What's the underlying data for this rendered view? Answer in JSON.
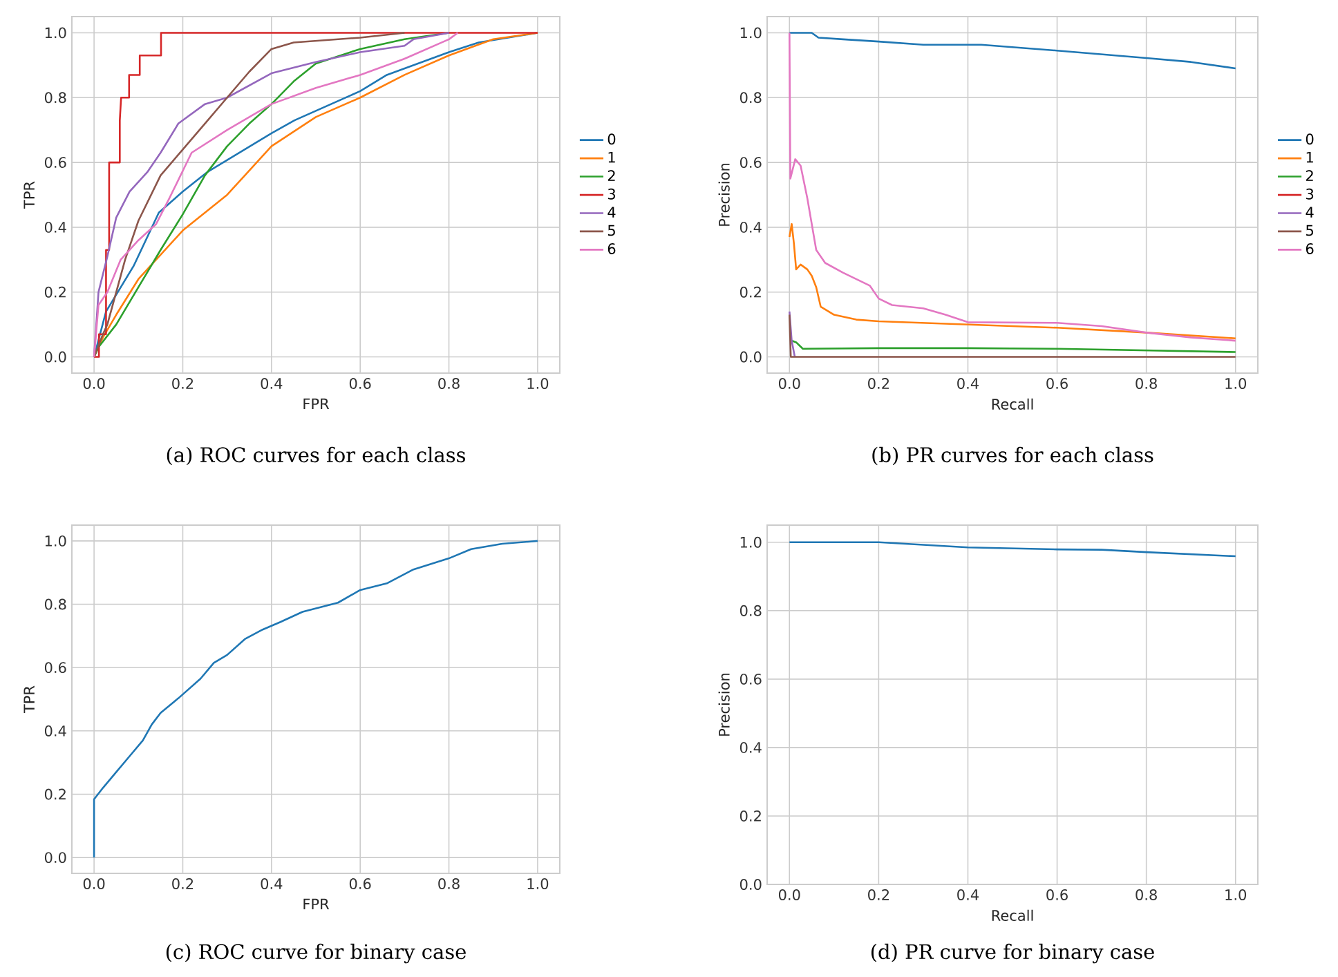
{
  "chart_data": [
    {
      "type": "line",
      "xlabel": "FPR",
      "ylabel": "TPR",
      "annotations": [
        "(a) ROC curves for each class"
      ],
      "xlim": [
        -0.05,
        1.05
      ],
      "ylim": [
        -0.05,
        1.05
      ],
      "xticks": [
        {
          "value": 0,
          "label": "0.0"
        },
        {
          "value": 0.2,
          "label": "0.2"
        },
        {
          "value": 0.4,
          "label": "0.4"
        },
        {
          "value": 0.6,
          "label": "0.6"
        },
        {
          "value": 0.8,
          "label": "0.8"
        },
        {
          "value": 1,
          "label": "1.0"
        }
      ],
      "yticks": [
        {
          "value": 0,
          "label": "0.0"
        },
        {
          "value": 0.2,
          "label": "0.2"
        },
        {
          "value": 0.4,
          "label": "0.4"
        },
        {
          "value": 0.6,
          "label": "0.6"
        },
        {
          "value": 0.8,
          "label": "0.8"
        },
        {
          "value": 1,
          "label": "1.0"
        }
      ],
      "grid": true,
      "legend": "right",
      "series": [
        {
          "name": "0",
          "color": "#1f77b4",
          "x": [
            0,
            0.027,
            0.089,
            0.146,
            0.2,
            0.255,
            0.4,
            0.452,
            0.6,
            0.66,
            0.8,
            0.867,
            1
          ],
          "values": [
            0,
            0.14,
            0.28,
            0.445,
            0.51,
            0.57,
            0.69,
            0.73,
            0.82,
            0.87,
            0.94,
            0.97,
            1
          ]
        },
        {
          "name": "1",
          "color": "#ff7f0e",
          "x": [
            0,
            0.02,
            0.05,
            0.1,
            0.2,
            0.3,
            0.4,
            0.5,
            0.6,
            0.7,
            0.8,
            0.9,
            1
          ],
          "values": [
            0,
            0.06,
            0.13,
            0.24,
            0.39,
            0.5,
            0.65,
            0.74,
            0.8,
            0.87,
            0.93,
            0.98,
            1
          ]
        },
        {
          "name": "2",
          "color": "#2ca02c",
          "x": [
            0,
            0.01,
            0.05,
            0.1,
            0.15,
            0.2,
            0.25,
            0.3,
            0.35,
            0.4,
            0.45,
            0.5,
            0.6,
            0.7,
            0.8
          ],
          "values": [
            0,
            0.03,
            0.1,
            0.215,
            0.33,
            0.44,
            0.56,
            0.65,
            0.72,
            0.78,
            0.85,
            0.905,
            0.95,
            0.98,
            1
          ]
        },
        {
          "name": "3",
          "color": "#d62728",
          "x": [
            0,
            0.011,
            0.011,
            0.027,
            0.027,
            0.034,
            0.034,
            0.058,
            0.058,
            0.061,
            0.079,
            0.079,
            0.103,
            0.103,
            0.151,
            0.151,
            1
          ],
          "values": [
            0,
            0,
            0.07,
            0.07,
            0.33,
            0.33,
            0.6,
            0.6,
            0.73,
            0.8,
            0.8,
            0.87,
            0.87,
            0.93,
            0.93,
            1,
            1
          ]
        },
        {
          "name": "4",
          "color": "#9467bd",
          "x": [
            0,
            0.01,
            0.03,
            0.05,
            0.08,
            0.12,
            0.15,
            0.19,
            0.25,
            0.3,
            0.4,
            0.5,
            0.6,
            0.7,
            0.72,
            0.8
          ],
          "values": [
            0,
            0.2,
            0.31,
            0.43,
            0.51,
            0.57,
            0.63,
            0.72,
            0.78,
            0.8,
            0.875,
            0.91,
            0.94,
            0.96,
            0.98,
            1
          ]
        },
        {
          "name": "5",
          "color": "#8c564b",
          "x": [
            0,
            0.02,
            0.03,
            0.07,
            0.1,
            0.15,
            0.2,
            0.25,
            0.3,
            0.35,
            0.4,
            0.45,
            0.6,
            0.7
          ],
          "values": [
            0,
            0.07,
            0.1,
            0.3,
            0.42,
            0.56,
            0.64,
            0.72,
            0.8,
            0.88,
            0.95,
            0.97,
            0.985,
            1
          ]
        },
        {
          "name": "6",
          "color": "#e377c2",
          "x": [
            0,
            0.01,
            0.03,
            0.06,
            0.1,
            0.14,
            0.17,
            0.22,
            0.3,
            0.4,
            0.5,
            0.6,
            0.7,
            0.8,
            0.82
          ],
          "values": [
            0,
            0.16,
            0.2,
            0.3,
            0.36,
            0.41,
            0.49,
            0.63,
            0.7,
            0.78,
            0.83,
            0.87,
            0.92,
            0.98,
            1
          ]
        }
      ]
    },
    {
      "type": "line",
      "xlabel": "Recall",
      "ylabel": "Precision",
      "annotations": [
        "(b) PR curves for each class"
      ],
      "xlim": [
        -0.05,
        1.05
      ],
      "ylim": [
        -0.05,
        1.05
      ],
      "xticks": [
        {
          "value": 0,
          "label": "0.0"
        },
        {
          "value": 0.2,
          "label": "0.2"
        },
        {
          "value": 0.4,
          "label": "0.4"
        },
        {
          "value": 0.6,
          "label": "0.6"
        },
        {
          "value": 0.8,
          "label": "0.8"
        },
        {
          "value": 1,
          "label": "1.0"
        }
      ],
      "yticks": [
        {
          "value": 0,
          "label": "0.0"
        },
        {
          "value": 0.2,
          "label": "0.2"
        },
        {
          "value": 0.4,
          "label": "0.4"
        },
        {
          "value": 0.6,
          "label": "0.6"
        },
        {
          "value": 0.8,
          "label": "0.8"
        },
        {
          "value": 1,
          "label": "1.0"
        }
      ],
      "grid": true,
      "legend": "right",
      "series": [
        {
          "name": "0",
          "color": "#1f77b4",
          "x": [
            0,
            0.05,
            0.065,
            0.12,
            0.2,
            0.3,
            0.43,
            0.6,
            0.8,
            0.9,
            1
          ],
          "values": [
            1,
            1,
            0.985,
            0.98,
            0.973,
            0.963,
            0.963,
            0.945,
            0.922,
            0.91,
            0.89
          ]
        },
        {
          "name": "1",
          "color": "#ff7f0e",
          "x": [
            0,
            0.005,
            0.01,
            0.015,
            0.025,
            0.04,
            0.05,
            0.06,
            0.07,
            0.1,
            0.15,
            0.2,
            0.4,
            0.6,
            0.8,
            1
          ],
          "values": [
            0.37,
            0.41,
            0.35,
            0.27,
            0.285,
            0.27,
            0.25,
            0.215,
            0.155,
            0.13,
            0.115,
            0.11,
            0.1,
            0.09,
            0.075,
            0.057
          ]
        },
        {
          "name": "2",
          "color": "#2ca02c",
          "x": [
            0.005,
            0.015,
            0.03,
            0.2,
            0.4,
            0.6,
            1
          ],
          "values": [
            0.05,
            0.045,
            0.025,
            0.027,
            0.027,
            0.025,
            0.015
          ]
        },
        {
          "name": "3",
          "color": "#d62728",
          "values": [
            null,
            null
          ]
        },
        {
          "name": "4",
          "color": "#9467bd",
          "x": [
            0,
            0.005,
            0.012
          ],
          "values": [
            0.14,
            0.05,
            0
          ]
        },
        {
          "name": "5",
          "color": "#8c564b",
          "x": [
            0,
            0.003,
            1
          ],
          "values": [
            0.13,
            0,
            0
          ]
        },
        {
          "name": "6",
          "color": "#e377c2",
          "x": [
            0,
            0.002,
            0.013,
            0.025,
            0.04,
            0.06,
            0.08,
            0.12,
            0.18,
            0.2,
            0.23,
            0.3,
            0.35,
            0.4,
            0.6,
            0.7,
            0.8,
            0.9,
            1
          ],
          "values": [
            1,
            0.55,
            0.61,
            0.59,
            0.49,
            0.33,
            0.29,
            0.26,
            0.22,
            0.18,
            0.16,
            0.15,
            0.13,
            0.107,
            0.105,
            0.095,
            0.075,
            0.06,
            0.05
          ]
        }
      ]
    },
    {
      "type": "line",
      "xlabel": "FPR",
      "ylabel": "TPR",
      "annotations": [
        "(c) ROC curve for binary case"
      ],
      "xlim": [
        -0.05,
        1.05
      ],
      "ylim": [
        -0.05,
        1.05
      ],
      "xticks": [
        {
          "value": 0,
          "label": "0.0"
        },
        {
          "value": 0.2,
          "label": "0.2"
        },
        {
          "value": 0.4,
          "label": "0.4"
        },
        {
          "value": 0.6,
          "label": "0.6"
        },
        {
          "value": 0.8,
          "label": "0.8"
        },
        {
          "value": 1,
          "label": "1.0"
        }
      ],
      "yticks": [
        {
          "value": 0,
          "label": "0.0"
        },
        {
          "value": 0.2,
          "label": "0.2"
        },
        {
          "value": 0.4,
          "label": "0.4"
        },
        {
          "value": 0.6,
          "label": "0.6"
        },
        {
          "value": 0.8,
          "label": "0.8"
        },
        {
          "value": 1,
          "label": "1.0"
        }
      ],
      "grid": true,
      "series": [
        {
          "color": "#1f77b4",
          "x": [
            0,
            0,
            0.02,
            0.05,
            0.08,
            0.11,
            0.13,
            0.15,
            0.19,
            0.24,
            0.27,
            0.3,
            0.34,
            0.38,
            0.42,
            0.47,
            0.55,
            0.6,
            0.66,
            0.72,
            0.8,
            0.85,
            0.92,
            1
          ],
          "values": [
            0,
            0.184,
            0.22,
            0.27,
            0.32,
            0.37,
            0.42,
            0.457,
            0.503,
            0.565,
            0.615,
            0.64,
            0.69,
            0.72,
            0.744,
            0.776,
            0.805,
            0.845,
            0.866,
            0.91,
            0.945,
            0.974,
            0.991,
            1
          ]
        }
      ]
    },
    {
      "type": "line",
      "xlabel": "Recall",
      "ylabel": "Precision",
      "annotations": [
        "(d) PR curve for binary case"
      ],
      "xlim": [
        -0.05,
        1.05
      ],
      "ylim": [
        0,
        1.05
      ],
      "xticks": [
        {
          "value": 0,
          "label": "0.0"
        },
        {
          "value": 0.2,
          "label": "0.2"
        },
        {
          "value": 0.4,
          "label": "0.4"
        },
        {
          "value": 0.6,
          "label": "0.6"
        },
        {
          "value": 0.8,
          "label": "0.8"
        },
        {
          "value": 1,
          "label": "1.0"
        }
      ],
      "yticks": [
        {
          "value": 0,
          "label": "0.0"
        },
        {
          "value": 0.2,
          "label": "0.2"
        },
        {
          "value": 0.4,
          "label": "0.4"
        },
        {
          "value": 0.6,
          "label": "0.6"
        },
        {
          "value": 0.8,
          "label": "0.8"
        },
        {
          "value": 1,
          "label": "1.0"
        }
      ],
      "grid": true,
      "series": [
        {
          "color": "#1f77b4",
          "x": [
            0,
            0.2,
            0.4,
            0.6,
            0.7,
            0.8,
            0.9,
            1
          ],
          "values": [
            1,
            1,
            0.985,
            0.979,
            0.978,
            0.971,
            0.965,
            0.959
          ]
        }
      ]
    }
  ]
}
